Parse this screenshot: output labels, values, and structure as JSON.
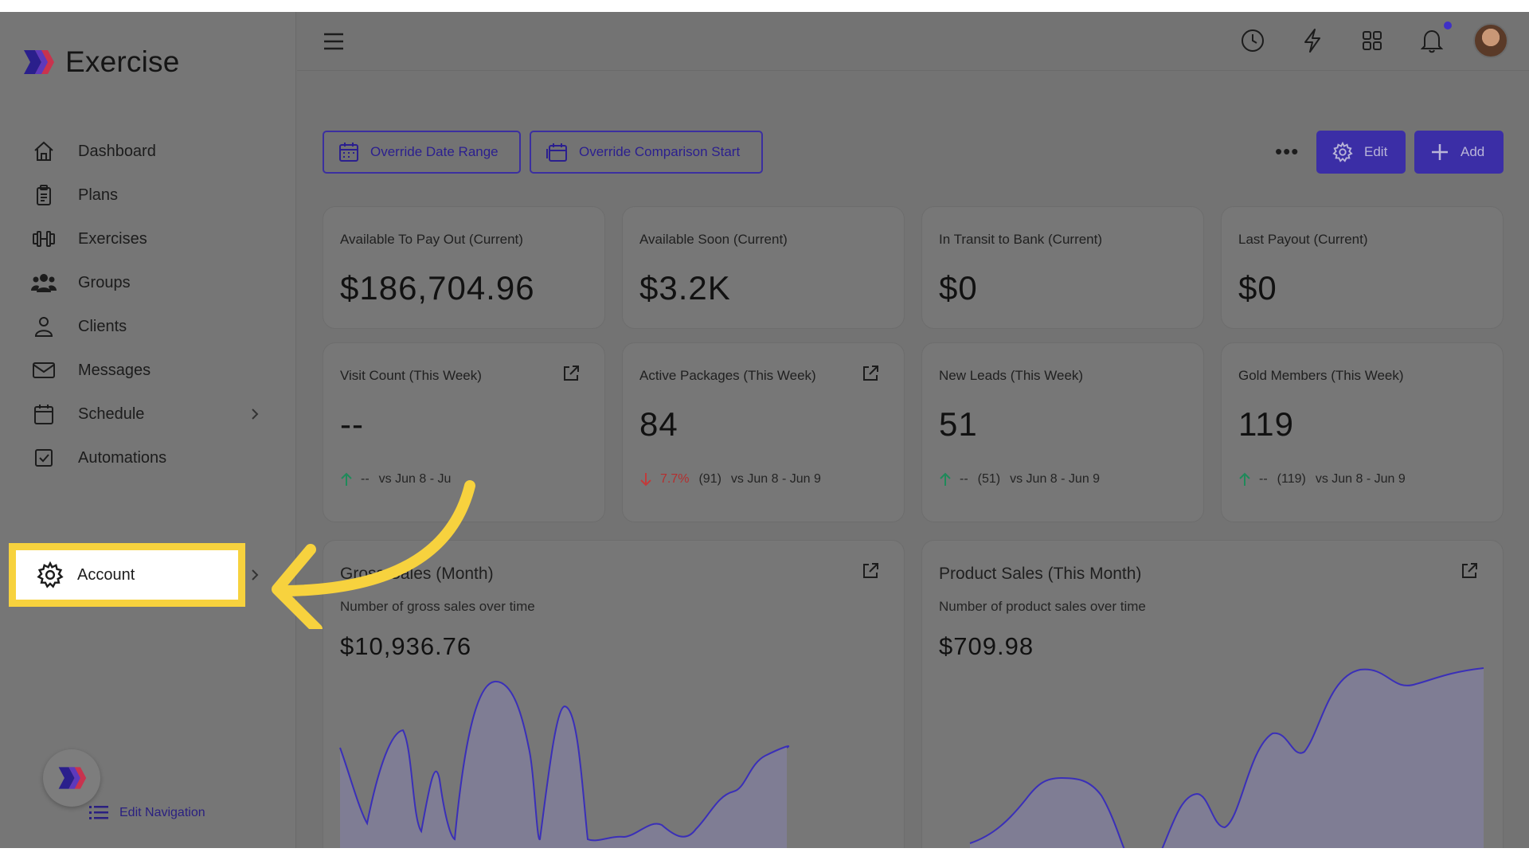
{
  "app": {
    "name": "Exercise"
  },
  "sidebar": {
    "items": [
      {
        "label": "Dashboard",
        "icon": "home-icon"
      },
      {
        "label": "Plans",
        "icon": "clipboard-icon"
      },
      {
        "label": "Exercises",
        "icon": "dumbbell-icon"
      },
      {
        "label": "Groups",
        "icon": "users-icon"
      },
      {
        "label": "Clients",
        "icon": "user-icon"
      },
      {
        "label": "Messages",
        "icon": "mail-icon"
      },
      {
        "label": "Schedule",
        "icon": "calendar-icon",
        "has_submenu": true
      },
      {
        "label": "Automations",
        "icon": "checkbox-icon"
      },
      {
        "label": "Account",
        "icon": "gear-icon",
        "has_submenu": true,
        "highlighted": true
      }
    ],
    "edit_navigation": "Edit Navigation"
  },
  "toolbar": {
    "override_date_range": "Override Date Range",
    "override_comparison_start": "Override Comparison Start",
    "more_label": "•••",
    "edit_label": "Edit",
    "add_label": "Add"
  },
  "stats": [
    {
      "title": "Available To Pay Out (Current)",
      "value": "$186,704.96"
    },
    {
      "title": "Available Soon (Current)",
      "value": "$3.2K"
    },
    {
      "title": "In Transit to Bank (Current)",
      "value": "$0"
    },
    {
      "title": "Last Payout (Current)",
      "value": "$0"
    }
  ],
  "weekly": [
    {
      "title": "Visit Count (This Week)",
      "value": "--",
      "trend": "up",
      "pct": "--",
      "prev": "",
      "vs": "vs Jun 8 - Ju"
    },
    {
      "title": "Active Packages (This Week)",
      "value": "84",
      "trend": "down",
      "pct": "7.7%",
      "prev": "(91)",
      "vs": "vs Jun 8 - Jun 9"
    },
    {
      "title": "New Leads (This Week)",
      "value": "51",
      "trend": "up",
      "pct": "--",
      "prev": "(51)",
      "vs": "vs Jun 8 - Jun 9"
    },
    {
      "title": "Gold Members (This Week)",
      "value": "119",
      "trend": "up",
      "pct": "--",
      "prev": "(119)",
      "vs": "vs Jun 8 - Jun 9"
    }
  ],
  "charts": [
    {
      "title": "Gross Sales (Month)",
      "subtitle": "Number of gross sales over time",
      "value": "$10,936.76"
    },
    {
      "title": "Product Sales (This Month)",
      "subtitle": "Number of product sales over time",
      "value": "$709.98"
    }
  ],
  "colors": {
    "accent": "#3b2ea6",
    "highlight": "#f7d23e",
    "trend_up": "#1f8a5a",
    "trend_down": "#c23a3a"
  }
}
